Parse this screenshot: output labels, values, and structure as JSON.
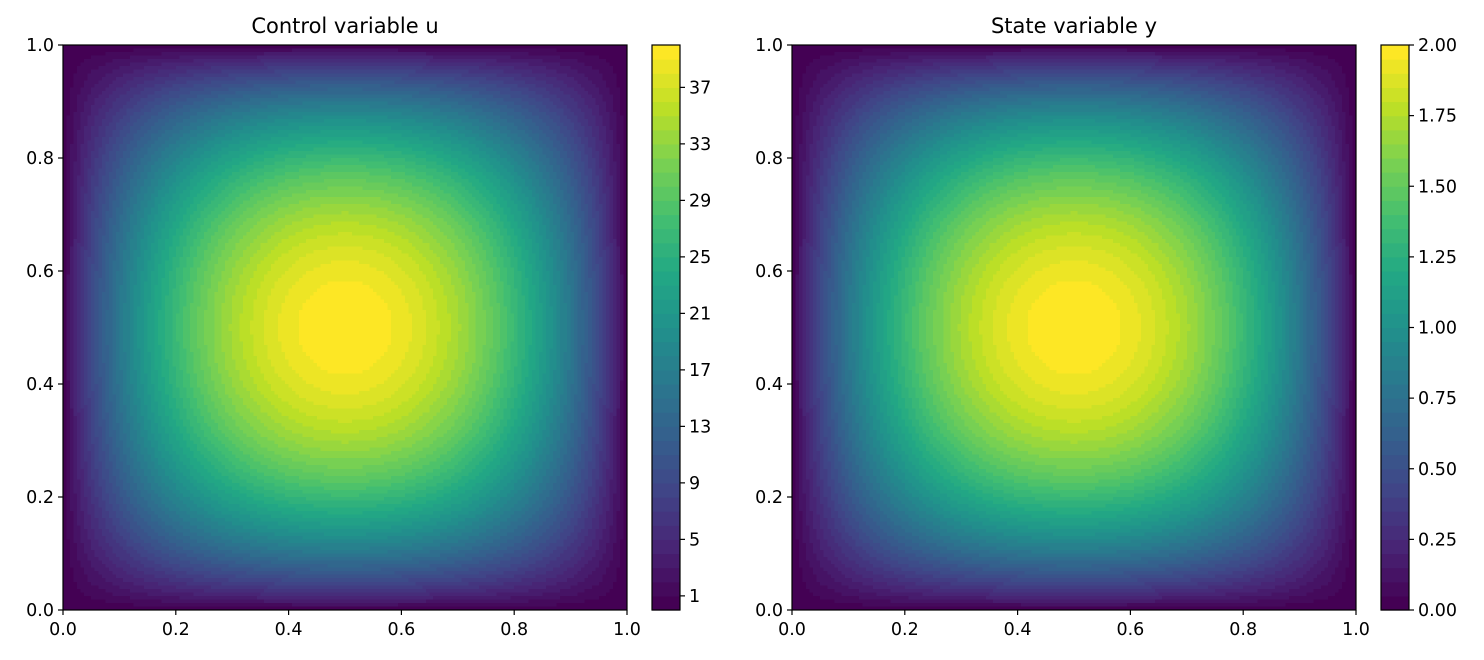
{
  "chart_data": [
    {
      "type": "contour",
      "title": "Control variable u",
      "xlim": [
        0.0,
        1.0
      ],
      "ylim": [
        0.0,
        1.0
      ],
      "xticks": [
        "0.0",
        "0.2",
        "0.4",
        "0.6",
        "0.8",
        "1.0"
      ],
      "yticks": [
        "0.0",
        "0.2",
        "0.4",
        "0.6",
        "0.8",
        "1.0"
      ],
      "field": "peak at (0.5, 0.5) decaying to the square boundary",
      "value_range": [
        0,
        40
      ],
      "peak": {
        "x": 0.5,
        "y": 0.5,
        "value": 40
      },
      "colormap": "viridis",
      "colorbar": {
        "range": [
          0,
          40
        ],
        "ticks": [
          1,
          5,
          9,
          13,
          17,
          21,
          25,
          29,
          33,
          37
        ],
        "tick_labels": [
          "1",
          "5",
          "9",
          "13",
          "17",
          "21",
          "25",
          "29",
          "33",
          "37"
        ]
      }
    },
    {
      "type": "contour",
      "title": "State variable y",
      "xlim": [
        0.0,
        1.0
      ],
      "ylim": [
        0.0,
        1.0
      ],
      "xticks": [
        "0.0",
        "0.2",
        "0.4",
        "0.6",
        "0.8",
        "1.0"
      ],
      "yticks": [
        "0.0",
        "0.2",
        "0.4",
        "0.6",
        "0.8",
        "1.0"
      ],
      "field": "peak at (0.5, 0.5) decaying to the square boundary",
      "value_range": [
        0,
        2
      ],
      "peak": {
        "x": 0.5,
        "y": 0.5,
        "value": 2.0
      },
      "colormap": "viridis",
      "colorbar": {
        "range": [
          0,
          2
        ],
        "ticks": [
          0,
          0.25,
          0.5,
          0.75,
          1.0,
          1.25,
          1.5,
          1.75,
          2.0
        ],
        "tick_labels": [
          "0.00",
          "0.25",
          "0.50",
          "0.75",
          "1.00",
          "1.25",
          "1.50",
          "1.75",
          "2.00"
        ]
      }
    }
  ]
}
